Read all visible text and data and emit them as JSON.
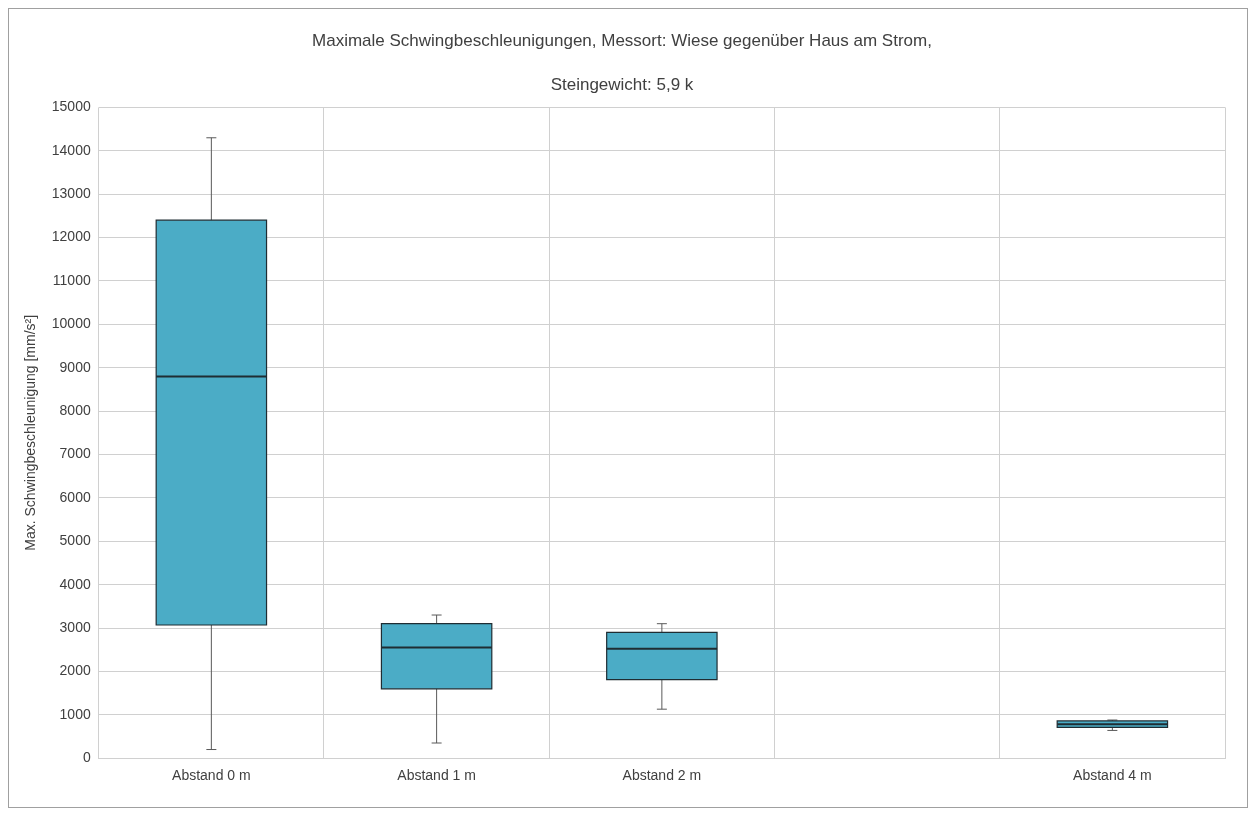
{
  "chart_data": {
    "type": "box",
    "title": "Maximale Schwingbeschleunigungen, Messort: Wiese gegenüber Haus am Strom,\nSteingewicht: 5,9 k",
    "ylabel": "Max. Schwingbeschleunigung [mm/s²]",
    "categories": [
      "Abstand 0 m",
      "Abstand 1 m",
      "Abstand 2 m",
      null,
      "Abstand 4 m"
    ],
    "series": [
      {
        "color": "#4bacc6",
        "boxes": [
          {
            "low": 200,
            "q1": 3070,
            "median": 8800,
            "q3": 12400,
            "high": 14300
          },
          {
            "low": 350,
            "q1": 1600,
            "median": 2550,
            "q3": 3100,
            "high": 3300
          },
          {
            "low": 1130,
            "q1": 1810,
            "median": 2520,
            "q3": 2900,
            "high": 3100
          },
          null,
          {
            "low": 640,
            "q1": 710,
            "median": 780,
            "q3": 860,
            "high": 880
          }
        ]
      }
    ],
    "ylim": [
      0,
      15000
    ],
    "yticks": [
      0,
      1000,
      2000,
      3000,
      4000,
      5000,
      6000,
      7000,
      8000,
      9000,
      10000,
      11000,
      12000,
      13000,
      14000,
      15000
    ],
    "grid": true,
    "legend": false
  }
}
